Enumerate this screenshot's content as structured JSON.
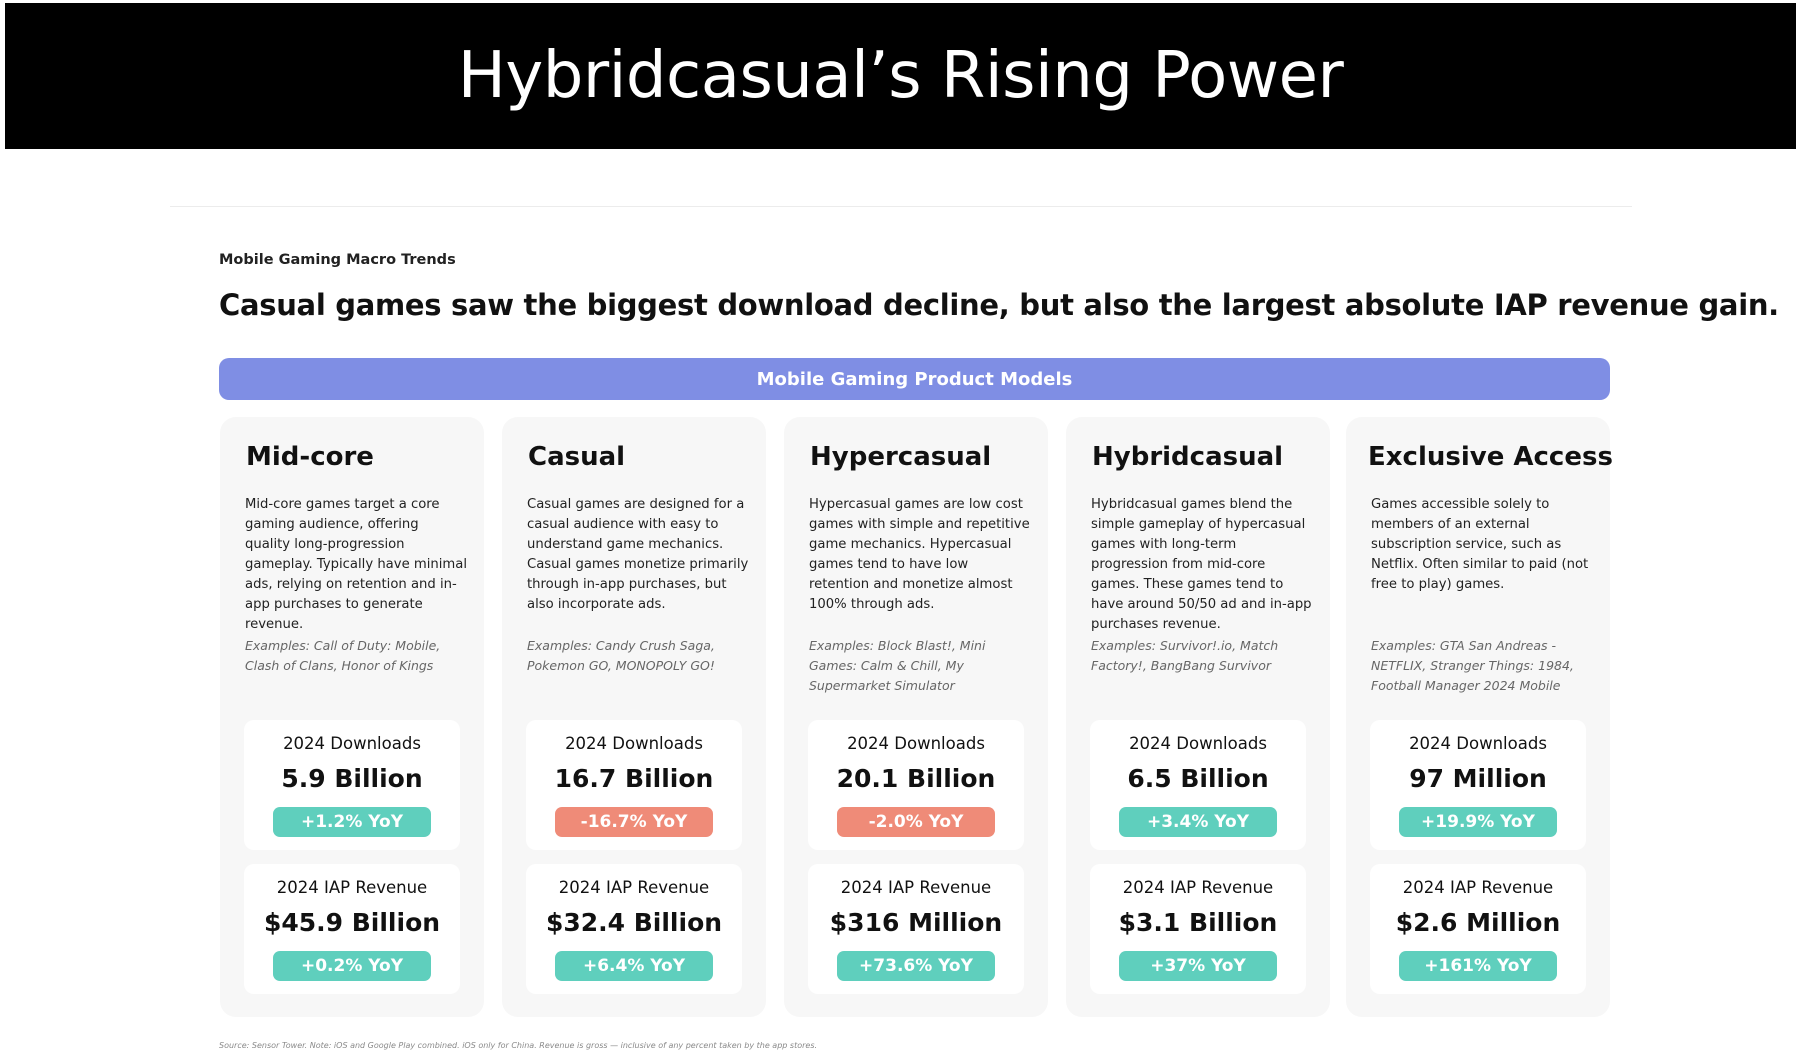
{
  "title": "Hybridcasual’s Rising Power",
  "eyebrow": "Mobile Gaming Macro Trends",
  "headline": "Casual games saw the biggest download decline, but also the largest absolute IAP revenue gain.",
  "banner": "Mobile Gaming Product Models",
  "columns": [
    {
      "title": "Mid-core",
      "description": "Mid-core games target a core gaming audience, offering quality long-progression gameplay. Typically have minimal ads, relying on retention and in-app purchases to generate revenue.",
      "examples": "Examples: Call of Duty: Mobile, Clash of Clans,  Honor of Kings",
      "downloads": {
        "label": "2024 Downloads",
        "value": "5.9 Billion",
        "yoy": "+1.2% YoY",
        "trend": "up"
      },
      "revenue": {
        "label": "2024 IAP Revenue",
        "value": "$45.9 Billion",
        "yoy": "+0.2% YoY",
        "trend": "up"
      }
    },
    {
      "title": "Casual",
      "description": "Casual games are designed for a casual audience with easy to understand game mechanics. Casual games monetize primarily through in-app purchases, but also incorporate ads.",
      "examples": "Examples: Candy Crush Saga, Pokemon GO, MONOPOLY GO!",
      "downloads": {
        "label": "2024 Downloads",
        "value": "16.7 Billion",
        "yoy": "-16.7% YoY",
        "trend": "down"
      },
      "revenue": {
        "label": "2024 IAP Revenue",
        "value": "$32.4 Billion",
        "yoy": "+6.4% YoY",
        "trend": "up"
      }
    },
    {
      "title": "Hypercasual",
      "description": "Hypercasual games are low cost games with simple and repetitive game mechanics. Hypercasual games tend to have low retention and monetize almost 100% through ads.",
      "examples": "Examples: Block Blast!, Mini Games: Calm & Chill, My Supermarket Simulator",
      "downloads": {
        "label": "2024 Downloads",
        "value": "20.1 Billion",
        "yoy": "-2.0% YoY",
        "trend": "down"
      },
      "revenue": {
        "label": "2024 IAP Revenue",
        "value": "$316 Million",
        "yoy": "+73.6% YoY",
        "trend": "up"
      }
    },
    {
      "title": "Hybridcasual",
      "description": "Hybridcasual games blend the simple gameplay of hypercasual games with long-term progression from mid-core games. These games tend to have around 50/50 ad and in-app purchases revenue.",
      "examples": "Examples: Survivor!.io, Match Factory!, BangBang Survivor",
      "downloads": {
        "label": "2024 Downloads",
        "value": "6.5 Billion",
        "yoy": "+3.4% YoY",
        "trend": "up"
      },
      "revenue": {
        "label": "2024 IAP Revenue",
        "value": "$3.1 Billion",
        "yoy": "+37% YoY",
        "trend": "up"
      }
    },
    {
      "title": "Exclusive Access",
      "description": "Games accessible solely to members of an external subscription service, such as Netflix. Often similar to paid (not free to play) games.",
      "examples": "Examples: GTA San Andreas - NETFLIX, Stranger Things: 1984, Football Manager 2024 Mobile",
      "downloads": {
        "label": "2024 Downloads",
        "value": "97 Million",
        "yoy": "+19.9% YoY",
        "trend": "up"
      },
      "revenue": {
        "label": "2024 IAP Revenue",
        "value": "$2.6 Million",
        "yoy": "+161% YoY",
        "trend": "up"
      }
    }
  ],
  "source": "Source: Sensor Tower. Note: iOS and Google Play combined. iOS only for China. Revenue is gross — inclusive of any percent taken by the app stores.",
  "colors": {
    "banner": "#7f8ee4",
    "positive": "#5fcfbd",
    "negative": "#ef8b78",
    "title_bar": "#000000"
  }
}
